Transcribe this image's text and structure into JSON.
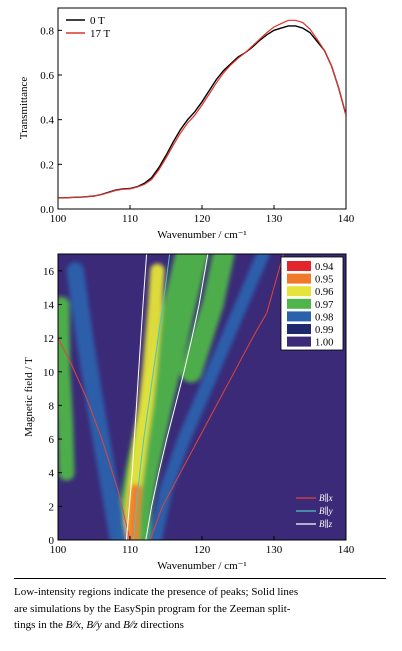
{
  "chart_data": [
    {
      "type": "line",
      "xlabel": "Wavenumber / cm⁻¹",
      "ylabel": "Transmittance",
      "xlim": [
        100,
        140
      ],
      "ylim": [
        0,
        0.9
      ],
      "xticks": [
        100,
        110,
        120,
        130,
        140
      ],
      "yticks": [
        "0.0",
        "0.2",
        "0.4",
        "0.6",
        "0.8"
      ],
      "legend_placement": "top-left",
      "grid": false,
      "series": [
        {
          "name": "0 T",
          "color": "#000000",
          "x": [
            100,
            101,
            102,
            103,
            104,
            105,
            106,
            107,
            108,
            109,
            110,
            111,
            112,
            113,
            114,
            115,
            116,
            117,
            118,
            119,
            120,
            121,
            122,
            123,
            124,
            125,
            126,
            127,
            128,
            129,
            130,
            131,
            132,
            133,
            134,
            135,
            136,
            137,
            138,
            139,
            140
          ],
          "y": [
            0.05,
            0.05,
            0.052,
            0.053,
            0.055,
            0.058,
            0.065,
            0.075,
            0.085,
            0.09,
            0.092,
            0.1,
            0.115,
            0.14,
            0.185,
            0.24,
            0.3,
            0.355,
            0.4,
            0.435,
            0.48,
            0.53,
            0.58,
            0.62,
            0.65,
            0.68,
            0.7,
            0.725,
            0.755,
            0.78,
            0.8,
            0.81,
            0.82,
            0.82,
            0.81,
            0.79,
            0.75,
            0.71,
            0.64,
            0.54,
            0.42
          ]
        },
        {
          "name": "17 T",
          "color": "#e0332b",
          "x": [
            100,
            101,
            102,
            103,
            104,
            105,
            106,
            107,
            108,
            109,
            110,
            111,
            112,
            113,
            114,
            115,
            116,
            117,
            118,
            119,
            120,
            121,
            122,
            123,
            124,
            125,
            126,
            127,
            128,
            129,
            130,
            131,
            132,
            133,
            134,
            135,
            136,
            137,
            138,
            139,
            140
          ],
          "y": [
            0.05,
            0.05,
            0.052,
            0.053,
            0.055,
            0.058,
            0.064,
            0.073,
            0.083,
            0.088,
            0.09,
            0.098,
            0.11,
            0.132,
            0.175,
            0.228,
            0.285,
            0.34,
            0.385,
            0.42,
            0.465,
            0.515,
            0.565,
            0.61,
            0.645,
            0.675,
            0.7,
            0.73,
            0.76,
            0.79,
            0.815,
            0.83,
            0.845,
            0.845,
            0.835,
            0.805,
            0.76,
            0.71,
            0.64,
            0.54,
            0.42
          ]
        }
      ]
    },
    {
      "type": "heatmap",
      "xlabel": "Wavenumber / cm⁻¹",
      "ylabel": "Magnetic field / T",
      "xlim": [
        100,
        140
      ],
      "ylim": [
        0,
        17
      ],
      "xticks": [
        100,
        110,
        120,
        130,
        140
      ],
      "yticks": [
        0,
        2,
        4,
        6,
        8,
        10,
        12,
        14,
        16
      ],
      "colorbar": {
        "placement": "top-right",
        "labels": [
          "0.94",
          "0.95",
          "0.96",
          "0.97",
          "0.98",
          "0.99",
          "1.00"
        ],
        "colors": [
          "#e3252b",
          "#f07a2a",
          "#e6e43a",
          "#4fb44a",
          "#2a61ad",
          "#21276d",
          "#3a2a78"
        ]
      },
      "background_color": "#3a2a78",
      "features": [
        {
          "center": [
            [
              0,
              110.5
            ],
            [
              2,
              110.8
            ],
            [
              4,
              111.6
            ],
            [
              6,
              112.6
            ],
            [
              8,
              113.6
            ],
            [
              10,
              114.7
            ],
            [
              12,
              115.8
            ],
            [
              14,
              116.9
            ],
            [
              16,
              118.0
            ],
            [
              17,
              118.6
            ]
          ],
          "width": 4.5,
          "color": "#4fb44a"
        },
        {
          "center": [
            [
              0,
              110.2
            ],
            [
              2,
              110.3
            ],
            [
              4,
              110.9
            ],
            [
              6,
              111.5
            ],
            [
              8,
              112.2
            ],
            [
              10,
              112.7
            ],
            [
              12,
              113.1
            ],
            [
              14,
              113.5
            ],
            [
              16,
              113.8
            ]
          ],
          "width": 2.0,
          "color": "#e6e43a"
        },
        {
          "center": [
            [
              0,
              110.4
            ],
            [
              1.5,
              110.5
            ],
            [
              3,
              110.8
            ]
          ],
          "width": 1.6,
          "color": "#f07a2a"
        },
        {
          "center": [
            [
              0,
              108.4
            ],
            [
              4,
              106.8
            ],
            [
              8,
              105.2
            ],
            [
              12,
              103.7
            ],
            [
              16,
              102.4
            ]
          ],
          "width": 2.4,
          "color": "#2a61ad"
        },
        {
          "center": [
            [
              4,
              101.2
            ],
            [
              7,
              101.0
            ],
            [
              10,
              100.6
            ],
            [
              14,
              100.5
            ]
          ],
          "width": 2.2,
          "color": "#4fb44a"
        },
        {
          "center": [
            [
              0,
              113.5
            ],
            [
              3,
              115.0
            ],
            [
              6,
              117.5
            ],
            [
              9,
              120.5
            ],
            [
              12,
              123.5
            ],
            [
              15,
              126.5
            ],
            [
              17,
              128.5
            ]
          ],
          "width": 1.8,
          "color": "#2a61ad"
        },
        {
          "center": [
            [
              10,
              118.5
            ],
            [
              12,
              120.0
            ],
            [
              14,
              121.5
            ],
            [
              16,
              122.5
            ],
            [
              17,
              123.0
            ]
          ],
          "width": 3.0,
          "color": "#4fb44a"
        }
      ],
      "series": [
        {
          "name": "B∥x",
          "color": "#e0453a",
          "lines": [
            [
              [
                110,
                0
              ],
              [
                108.3,
                3
              ],
              [
                106.1,
                6
              ],
              [
                103.9,
                8.5
              ],
              [
                101.8,
                10.5
              ],
              [
                100,
                12
              ]
            ],
            [
              [
                112.8,
                0
              ],
              [
                114.5,
                2
              ],
              [
                117,
                4
              ],
              [
                119.5,
                6
              ],
              [
                122,
                8
              ],
              [
                124.5,
                10
              ],
              [
                127,
                12
              ],
              [
                129,
                13.5
              ],
              [
                131.3,
                17
              ]
            ]
          ]
        },
        {
          "name": "B∥y",
          "color": "#4ec2c7",
          "lines": [
            [
              [
                110.5,
                0
              ],
              [
                111.1,
                3
              ],
              [
                111.9,
                6
              ],
              [
                112.9,
                9
              ],
              [
                113.9,
                12
              ],
              [
                114.9,
                15
              ],
              [
                115.5,
                17
              ]
            ]
          ]
        },
        {
          "name": "B∥z",
          "color": "#ffffff",
          "lines": [
            [
              [
                109.5,
                0
              ],
              [
                109.9,
                2
              ],
              [
                110.3,
                4
              ],
              [
                110.6,
                6
              ],
              [
                110.9,
                8
              ],
              [
                111.2,
                10
              ],
              [
                111.5,
                12
              ],
              [
                111.8,
                14
              ],
              [
                112.3,
                17
              ]
            ],
            [
              [
                112.2,
                0
              ],
              [
                113.0,
                2
              ],
              [
                114.0,
                4
              ],
              [
                115.1,
                6
              ],
              [
                116.3,
                8
              ],
              [
                117.5,
                10
              ],
              [
                118.6,
                12
              ],
              [
                119.6,
                14
              ],
              [
                120.8,
                17
              ]
            ]
          ]
        }
      ]
    }
  ],
  "caption": {
    "line1": "Low-intensity regions indicate the presence of peaks; Solid lines",
    "line2": "are simulations by the EasySpin program for the Zeeman split-",
    "line3_a": "tings in the ",
    "line3_b": "B∕∕x",
    "line3_c": ", ",
    "line3_d": "B∕∕y",
    "line3_e": " and ",
    "line3_f": "B∕∕z",
    "line3_g": " directions"
  }
}
